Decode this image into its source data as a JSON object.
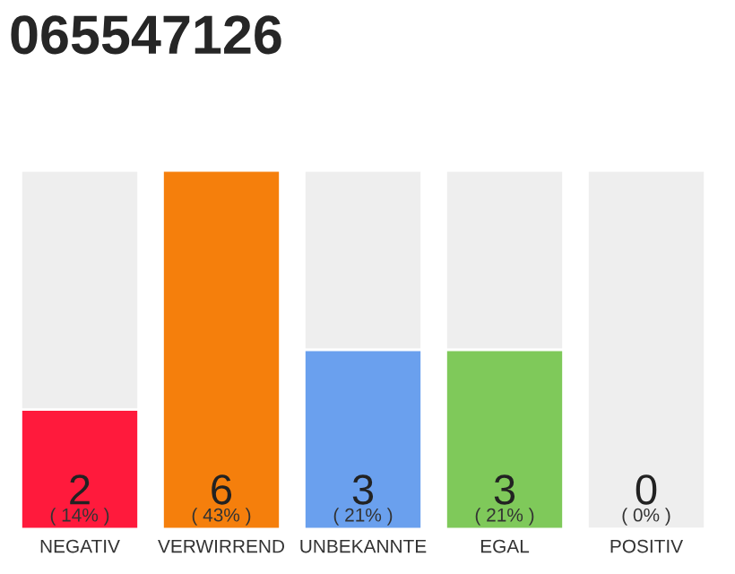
{
  "chart_data": {
    "type": "bar",
    "title": "065547126",
    "categories": [
      "NEGATIV",
      "VERWIRREND",
      "UNBEKANNTE",
      "EGAL",
      "POSITIV"
    ],
    "values": [
      2,
      6,
      3,
      3,
      0
    ],
    "colors": [
      "#ff1a3c",
      "#f57f0c",
      "#6aa0ee",
      "#7fc95a",
      null
    ],
    "data_labels": true,
    "annotations": [
      "( 14% )",
      "( 43% )",
      "( 21% )",
      "( 21% )",
      "( 0% )"
    ],
    "ylim": [
      0,
      6
    ],
    "tick_labels": "x"
  }
}
